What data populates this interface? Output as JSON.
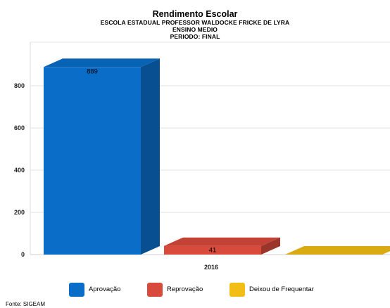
{
  "chart_data": {
    "type": "bar",
    "title": "Rendimento Escolar",
    "subtitles": [
      "ESCOLA ESTADUAL PROFESSOR WALDOCKE FRICKE DE LYRA",
      "ENSINO MEDIO",
      "PERIODO: FINAL"
    ],
    "categories": [
      "2016"
    ],
    "series": [
      {
        "name": "Aprovação",
        "values": [
          889
        ],
        "color": "#0a6ec9"
      },
      {
        "name": "Reprovação",
        "values": [
          41
        ],
        "color": "#d74a3c"
      },
      {
        "name": "Deixou de Frequentar",
        "values": [
          0
        ],
        "color": "#f2bd14"
      }
    ],
    "ylim": [
      0,
      900
    ],
    "yticks": [
      0,
      200,
      400,
      600,
      800
    ],
    "grid": true,
    "three_d": true,
    "legend_position": "bottom",
    "source": "Fonte: SIGEAM"
  }
}
